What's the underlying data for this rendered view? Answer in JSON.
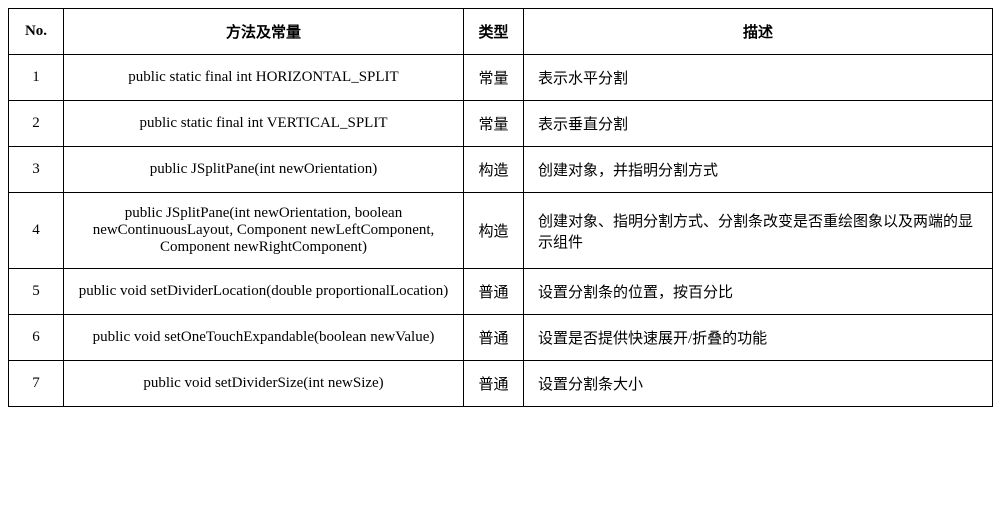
{
  "table": {
    "header": {
      "no": "No.",
      "method": "方法及常量",
      "type": "类型",
      "desc": "描述"
    },
    "rows": [
      {
        "no": "1",
        "method": "public static final int HORIZONTAL_SPLIT",
        "type": "常量",
        "desc": "表示水平分割"
      },
      {
        "no": "2",
        "method": "public static final int VERTICAL_SPLIT",
        "type": "常量",
        "desc": "表示垂直分割"
      },
      {
        "no": "3",
        "method": "public JSplitPane(int newOrientation)",
        "type": "构造",
        "desc": "创建对象，并指明分割方式"
      },
      {
        "no": "4",
        "method": "public JSplitPane(int newOrientation, boolean newContinuousLayout, Component newLeftComponent, Component newRightComponent)",
        "type": "构造",
        "desc": "创建对象、指明分割方式、分割条改变是否重绘图象以及两端的显示组件"
      },
      {
        "no": "5",
        "method": "public void setDividerLocation(double proportionalLocation)",
        "type": "普通",
        "desc": "设置分割条的位置，按百分比"
      },
      {
        "no": "6",
        "method": "public void setOneTouchExpandable(boolean newValue)",
        "type": "普通",
        "desc": "设置是否提供快速展开/折叠的功能"
      },
      {
        "no": "7",
        "method": "public void setDividerSize(int newSize)",
        "type": "普通",
        "desc": "设置分割条大小"
      }
    ]
  }
}
